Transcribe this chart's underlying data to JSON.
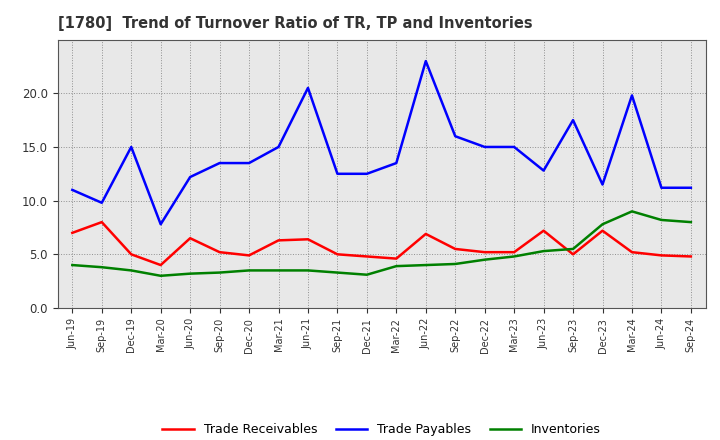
{
  "title": "[1780]  Trend of Turnover Ratio of TR, TP and Inventories",
  "x_labels": [
    "Jun-19",
    "Sep-19",
    "Dec-19",
    "Mar-20",
    "Jun-20",
    "Sep-20",
    "Dec-20",
    "Mar-21",
    "Jun-21",
    "Sep-21",
    "Dec-21",
    "Mar-22",
    "Jun-22",
    "Sep-22",
    "Dec-22",
    "Mar-23",
    "Jun-23",
    "Sep-23",
    "Dec-23",
    "Mar-24",
    "Jun-24",
    "Sep-24"
  ],
  "trade_receivables": [
    7.0,
    8.0,
    5.0,
    4.0,
    6.5,
    5.2,
    4.9,
    6.3,
    6.4,
    5.0,
    4.8,
    4.6,
    6.9,
    5.5,
    5.2,
    5.2,
    7.2,
    5.0,
    7.2,
    5.2,
    4.9,
    4.8
  ],
  "trade_payables": [
    11.0,
    9.8,
    15.0,
    7.8,
    12.2,
    13.5,
    13.5,
    15.0,
    20.5,
    12.5,
    12.5,
    13.5,
    23.0,
    16.0,
    15.0,
    15.0,
    12.8,
    17.5,
    11.5,
    19.8,
    11.2,
    11.2
  ],
  "inventories": [
    4.0,
    3.8,
    3.5,
    3.0,
    3.2,
    3.3,
    3.5,
    3.5,
    3.5,
    3.3,
    3.1,
    3.9,
    4.0,
    4.1,
    4.5,
    4.8,
    5.3,
    5.5,
    7.8,
    9.0,
    8.2,
    8.0
  ],
  "tr_color": "#ff0000",
  "tp_color": "#0000ff",
  "inv_color": "#008000",
  "ylim": [
    0.0,
    25.0
  ],
  "yticks": [
    0.0,
    5.0,
    10.0,
    15.0,
    20.0
  ],
  "legend_labels": [
    "Trade Receivables",
    "Trade Payables",
    "Inventories"
  ],
  "plot_bg_color": "#e8e8e8",
  "fig_bg_color": "#ffffff",
  "grid_color": "#555555"
}
